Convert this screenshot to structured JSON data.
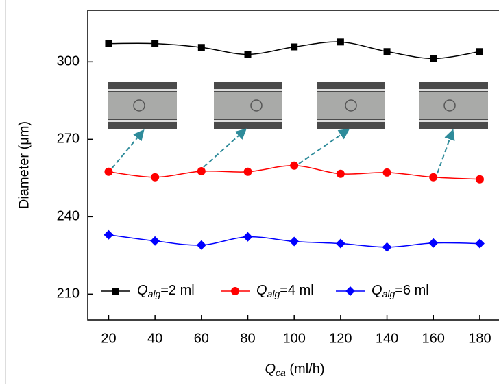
{
  "chart_data": {
    "type": "line",
    "xlabel": "Qca (ml/h)",
    "ylabel": "Diameter (μm)",
    "x": [
      20,
      40,
      60,
      80,
      100,
      120,
      140,
      160,
      180
    ],
    "xlim": [
      11,
      188
    ],
    "xticks": [
      20,
      40,
      60,
      80,
      100,
      120,
      140,
      160,
      180
    ],
    "ylim": [
      200,
      320
    ],
    "yticks": [
      210,
      240,
      270,
      300
    ],
    "series": [
      {
        "name": "Qalg=2 ml",
        "color": "#000000",
        "marker": "square",
        "values": [
          307.1,
          307.1,
          305.6,
          302.9,
          305.8,
          307.7,
          304.0,
          301.3,
          304.0
        ]
      },
      {
        "name": "Qalg=4 ml",
        "color": "#ff0000",
        "marker": "circle",
        "values": [
          257.4,
          255.3,
          257.6,
          257.4,
          259.8,
          256.6,
          257.1,
          255.3,
          254.5
        ]
      },
      {
        "name": "Qalg=6 ml",
        "color": "#0000ff",
        "marker": "diamond",
        "values": [
          233.0,
          230.6,
          229.0,
          232.2,
          230.4,
          229.6,
          228.2,
          229.8,
          229.6
        ]
      }
    ]
  }
}
